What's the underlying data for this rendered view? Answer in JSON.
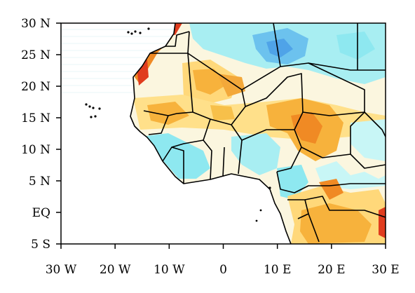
{
  "map": {
    "lon_range": [
      -30,
      30
    ],
    "lat_range": [
      -5,
      30
    ],
    "x_ticks": [
      {
        "value": -30,
        "label": "30 W"
      },
      {
        "value": -20,
        "label": "20 W"
      },
      {
        "value": -10,
        "label": "10 W"
      },
      {
        "value": 0,
        "label": "0"
      },
      {
        "value": 10,
        "label": "10 E"
      },
      {
        "value": 20,
        "label": "20 E"
      },
      {
        "value": 30,
        "label": "30 E"
      }
    ],
    "y_ticks": [
      {
        "value": 30,
        "label": "30 N"
      },
      {
        "value": 25,
        "label": "25 N"
      },
      {
        "value": 20,
        "label": "20 N"
      },
      {
        "value": 15,
        "label": "15 N"
      },
      {
        "value": 10,
        "label": "10 N"
      },
      {
        "value": 5,
        "label": "5 N"
      },
      {
        "value": 0,
        "label": "EQ"
      },
      {
        "value": -5,
        "label": "5 S"
      }
    ],
    "colors": {
      "ocean": "#ffffff",
      "land": "#ffffff",
      "border": "#000000",
      "cyan": "#8ee8f0",
      "light_cyan": "#c8f6f6",
      "blue": "#4fa3e8",
      "yellow": "#ffe08a",
      "orange": "#f7b23c",
      "dark_orange": "#f08a24",
      "red": "#e03c1e"
    }
  }
}
